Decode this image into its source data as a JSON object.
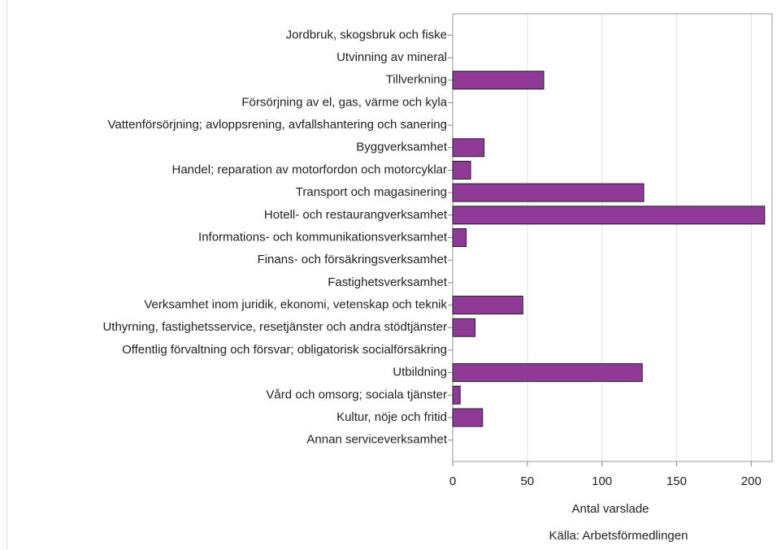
{
  "chart_data": {
    "type": "barh",
    "categories": [
      "Jordbruk, skogsbruk och fiske",
      "Utvinning av mineral",
      "Tillverkning",
      "Försörjning av el, gas, värme och kyla",
      "Vattenförsörjning; avloppsrening, avfallshantering och sanering",
      "Byggverksamhet",
      "Handel; reparation av motorfordon och motorcyklar",
      "Transport och magasinering",
      "Hotell- och restaurangverksamhet",
      "Informations- och kommunikationsverksamhet",
      "Finans- och försäkringsverksamhet",
      "Fastighetsverksamhet",
      "Verksamhet inom juridik, ekonomi, vetenskap och teknik",
      "Uthyrning, fastighetsservice, resetjänster och andra stödtjänster",
      "Offentlig förvaltning och försvar;  obligatorisk socialförsäkring",
      "Utbildning",
      "Vård och omsorg; sociala tjänster",
      "Kultur, nöje och fritid",
      "Annan serviceverksamhet"
    ],
    "values": [
      0,
      0,
      61,
      0,
      0,
      21,
      12,
      128,
      209,
      9,
      0,
      0,
      47,
      15,
      0,
      127,
      5,
      20,
      0
    ],
    "color": "#8e3a96",
    "xlim": [
      0,
      214
    ],
    "xticks": [
      0,
      50,
      100,
      150,
      200
    ],
    "grid": true,
    "xlabel": "Antal varslade",
    "source": "Källa: Arbetsförmedlingen"
  }
}
